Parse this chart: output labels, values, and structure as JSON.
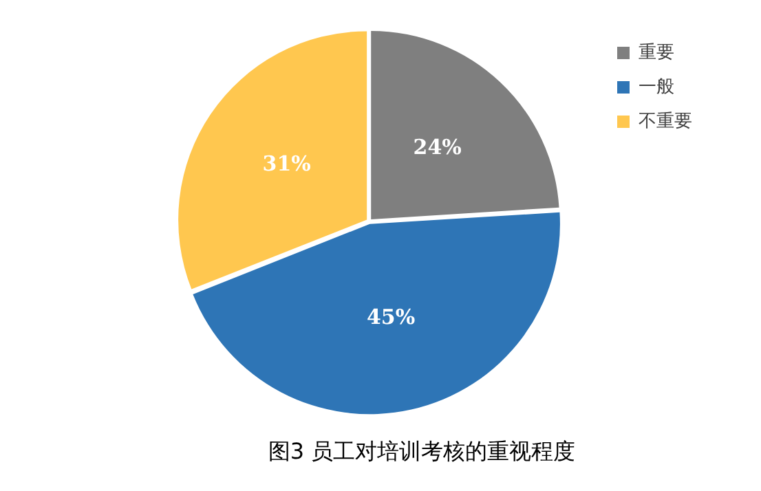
{
  "chart_data": {
    "type": "pie",
    "title": "图3 员工对培训考核的重视程度",
    "categories": [
      "重要",
      "一般",
      "不重要"
    ],
    "values": [
      24,
      45,
      31
    ],
    "value_labels": [
      "24%",
      "45%",
      "31%"
    ],
    "colors": [
      "#7f7f7f",
      "#2e75b6",
      "#ffc74f"
    ],
    "legend": "right"
  }
}
